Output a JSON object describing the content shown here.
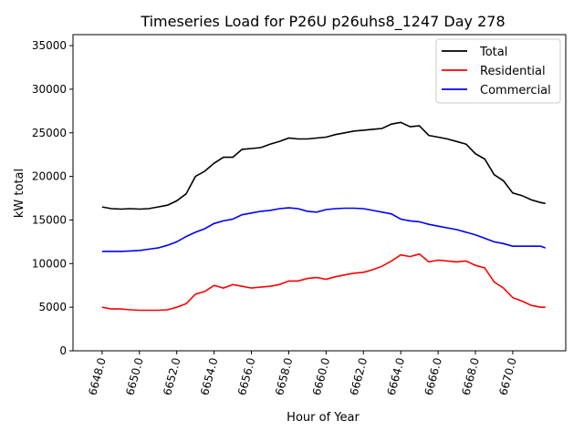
{
  "chart_data": {
    "type": "line",
    "title": "Timeseries Load for P26U p26uhs8_1247  Day 278",
    "xlabel": "Hour of Year",
    "ylabel": "kW total",
    "xlim": [
      6646.44,
      6672.84
    ],
    "ylim": [
      0,
      36260
    ],
    "xticks": [
      6648,
      6650,
      6652,
      6654,
      6656,
      6658,
      6660,
      6662,
      6664,
      6666,
      6668,
      6670
    ],
    "xtick_labels": [
      "6648.0",
      "6650.0",
      "6652.0",
      "6654.0",
      "6656.0",
      "6658.0",
      "6660.0",
      "6662.0",
      "6664.0",
      "6666.0",
      "6668.0",
      "6670.0"
    ],
    "yticks": [
      0,
      5000,
      10000,
      15000,
      20000,
      25000,
      30000,
      35000
    ],
    "ytick_labels": [
      "0",
      "5000",
      "10000",
      "15000",
      "20000",
      "25000",
      "30000",
      "35000"
    ],
    "grid": false,
    "legend_position": "top-right",
    "x": [
      6648,
      6648.5,
      6649,
      6649.5,
      6650,
      6650.5,
      6651,
      6651.5,
      6652,
      6652.5,
      6653,
      6653.5,
      6654,
      6654.5,
      6655,
      6655.5,
      6656,
      6656.5,
      6657,
      6657.5,
      6658,
      6658.5,
      6659,
      6659.5,
      6660,
      6660.5,
      6661,
      6661.5,
      6662,
      6662.5,
      6663,
      6663.5,
      6664,
      6664.5,
      6665,
      6665.5,
      6666,
      6666.5,
      6667,
      6667.5,
      6668,
      6668.5,
      6669,
      6669.5,
      6670,
      6670.5,
      6671,
      6671.5,
      6671.75
    ],
    "series": [
      {
        "name": "Total",
        "color": "#000000",
        "values": [
          16500,
          16300,
          16250,
          16300,
          16250,
          16300,
          16500,
          16700,
          17200,
          18000,
          20000,
          20600,
          21500,
          22200,
          22200,
          23100,
          23200,
          23300,
          23700,
          24000,
          24400,
          24300,
          24300,
          24400,
          24500,
          24800,
          25000,
          25200,
          25300,
          25400,
          25500,
          26000,
          26200,
          25700,
          25800,
          24700,
          24500,
          24300,
          24000,
          23700,
          22600,
          22000,
          20200,
          19500,
          18100,
          17800,
          17300,
          17000,
          16900
        ]
      },
      {
        "name": "Residential",
        "color": "#ff0000",
        "values": [
          5000,
          4800,
          4800,
          4700,
          4650,
          4650,
          4650,
          4700,
          5000,
          5400,
          6500,
          6800,
          7500,
          7200,
          7600,
          7400,
          7200,
          7300,
          7400,
          7600,
          8000,
          8000,
          8300,
          8400,
          8200,
          8500,
          8700,
          8900,
          9000,
          9300,
          9700,
          10300,
          11000,
          10800,
          11100,
          10200,
          10400,
          10300,
          10200,
          10300,
          9800,
          9500,
          7900,
          7200,
          6100,
          5700,
          5200,
          5000,
          5000
        ]
      },
      {
        "name": "Commercial",
        "color": "#0000ff",
        "values": [
          11400,
          11400,
          11400,
          11450,
          11500,
          11650,
          11800,
          12100,
          12500,
          13100,
          13600,
          14000,
          14600,
          14900,
          15100,
          15600,
          15800,
          16000,
          16100,
          16300,
          16400,
          16300,
          16000,
          15900,
          16200,
          16300,
          16350,
          16350,
          16300,
          16100,
          15900,
          15700,
          15100,
          14900,
          14800,
          14500,
          14300,
          14100,
          13900,
          13600,
          13300,
          12900,
          12500,
          12300,
          12000,
          12000,
          12000,
          12000,
          11800
        ]
      }
    ]
  }
}
